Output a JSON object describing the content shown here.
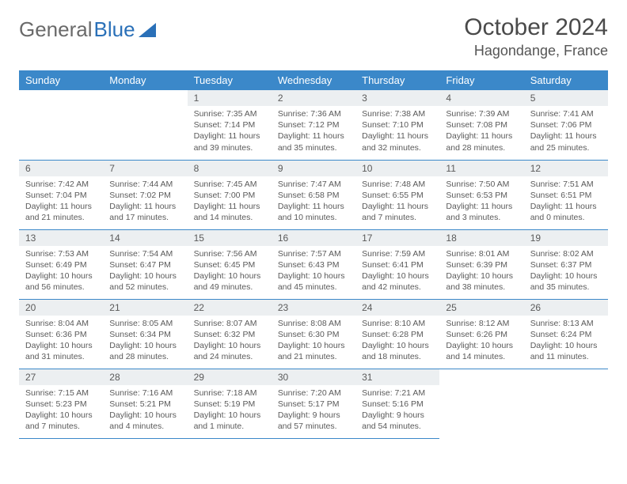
{
  "logo": {
    "text1": "General",
    "text2": "Blue"
  },
  "title": "October 2024",
  "location": "Hagondange, France",
  "colors": {
    "header_bg": "#3b88c9",
    "header_text": "#ffffff",
    "daynum_bg": "#eceff1",
    "border": "#3b88c9",
    "text": "#5a5a5a",
    "logo_gray": "#6a6a6a",
    "logo_blue": "#2a70b8"
  },
  "weekdays": [
    "Sunday",
    "Monday",
    "Tuesday",
    "Wednesday",
    "Thursday",
    "Friday",
    "Saturday"
  ],
  "weeks": [
    [
      null,
      null,
      {
        "n": "1",
        "sr": "7:35 AM",
        "ss": "7:14 PM",
        "dl": "11 hours and 39 minutes."
      },
      {
        "n": "2",
        "sr": "7:36 AM",
        "ss": "7:12 PM",
        "dl": "11 hours and 35 minutes."
      },
      {
        "n": "3",
        "sr": "7:38 AM",
        "ss": "7:10 PM",
        "dl": "11 hours and 32 minutes."
      },
      {
        "n": "4",
        "sr": "7:39 AM",
        "ss": "7:08 PM",
        "dl": "11 hours and 28 minutes."
      },
      {
        "n": "5",
        "sr": "7:41 AM",
        "ss": "7:06 PM",
        "dl": "11 hours and 25 minutes."
      }
    ],
    [
      {
        "n": "6",
        "sr": "7:42 AM",
        "ss": "7:04 PM",
        "dl": "11 hours and 21 minutes."
      },
      {
        "n": "7",
        "sr": "7:44 AM",
        "ss": "7:02 PM",
        "dl": "11 hours and 17 minutes."
      },
      {
        "n": "8",
        "sr": "7:45 AM",
        "ss": "7:00 PM",
        "dl": "11 hours and 14 minutes."
      },
      {
        "n": "9",
        "sr": "7:47 AM",
        "ss": "6:58 PM",
        "dl": "11 hours and 10 minutes."
      },
      {
        "n": "10",
        "sr": "7:48 AM",
        "ss": "6:55 PM",
        "dl": "11 hours and 7 minutes."
      },
      {
        "n": "11",
        "sr": "7:50 AM",
        "ss": "6:53 PM",
        "dl": "11 hours and 3 minutes."
      },
      {
        "n": "12",
        "sr": "7:51 AM",
        "ss": "6:51 PM",
        "dl": "11 hours and 0 minutes."
      }
    ],
    [
      {
        "n": "13",
        "sr": "7:53 AM",
        "ss": "6:49 PM",
        "dl": "10 hours and 56 minutes."
      },
      {
        "n": "14",
        "sr": "7:54 AM",
        "ss": "6:47 PM",
        "dl": "10 hours and 52 minutes."
      },
      {
        "n": "15",
        "sr": "7:56 AM",
        "ss": "6:45 PM",
        "dl": "10 hours and 49 minutes."
      },
      {
        "n": "16",
        "sr": "7:57 AM",
        "ss": "6:43 PM",
        "dl": "10 hours and 45 minutes."
      },
      {
        "n": "17",
        "sr": "7:59 AM",
        "ss": "6:41 PM",
        "dl": "10 hours and 42 minutes."
      },
      {
        "n": "18",
        "sr": "8:01 AM",
        "ss": "6:39 PM",
        "dl": "10 hours and 38 minutes."
      },
      {
        "n": "19",
        "sr": "8:02 AM",
        "ss": "6:37 PM",
        "dl": "10 hours and 35 minutes."
      }
    ],
    [
      {
        "n": "20",
        "sr": "8:04 AM",
        "ss": "6:36 PM",
        "dl": "10 hours and 31 minutes."
      },
      {
        "n": "21",
        "sr": "8:05 AM",
        "ss": "6:34 PM",
        "dl": "10 hours and 28 minutes."
      },
      {
        "n": "22",
        "sr": "8:07 AM",
        "ss": "6:32 PM",
        "dl": "10 hours and 24 minutes."
      },
      {
        "n": "23",
        "sr": "8:08 AM",
        "ss": "6:30 PM",
        "dl": "10 hours and 21 minutes."
      },
      {
        "n": "24",
        "sr": "8:10 AM",
        "ss": "6:28 PM",
        "dl": "10 hours and 18 minutes."
      },
      {
        "n": "25",
        "sr": "8:12 AM",
        "ss": "6:26 PM",
        "dl": "10 hours and 14 minutes."
      },
      {
        "n": "26",
        "sr": "8:13 AM",
        "ss": "6:24 PM",
        "dl": "10 hours and 11 minutes."
      }
    ],
    [
      {
        "n": "27",
        "sr": "7:15 AM",
        "ss": "5:23 PM",
        "dl": "10 hours and 7 minutes."
      },
      {
        "n": "28",
        "sr": "7:16 AM",
        "ss": "5:21 PM",
        "dl": "10 hours and 4 minutes."
      },
      {
        "n": "29",
        "sr": "7:18 AM",
        "ss": "5:19 PM",
        "dl": "10 hours and 1 minute."
      },
      {
        "n": "30",
        "sr": "7:20 AM",
        "ss": "5:17 PM",
        "dl": "9 hours and 57 minutes."
      },
      {
        "n": "31",
        "sr": "7:21 AM",
        "ss": "5:16 PM",
        "dl": "9 hours and 54 minutes."
      },
      null,
      null
    ]
  ],
  "labels": {
    "sunrise": "Sunrise:",
    "sunset": "Sunset:",
    "daylight": "Daylight:"
  }
}
